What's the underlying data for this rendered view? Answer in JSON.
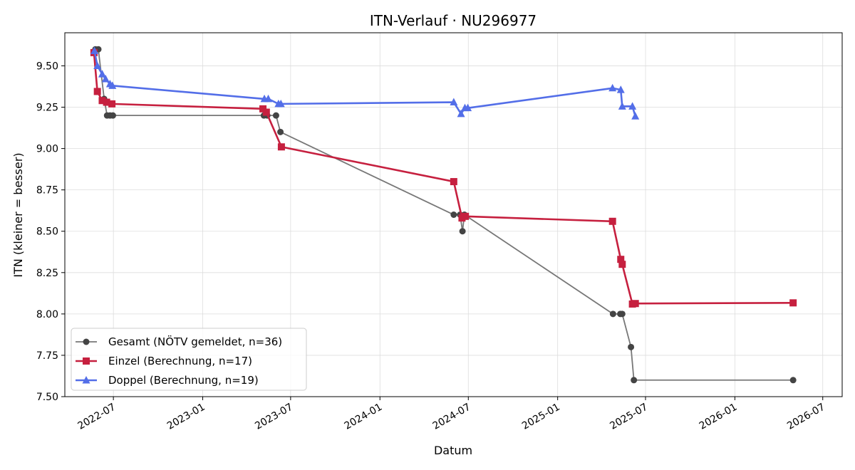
{
  "chart_data": {
    "type": "line",
    "title": "ITN-Verlauf · NU296977",
    "xlabel": "Datum",
    "ylabel": "ITN  (kleiner = besser)",
    "x_type": "date",
    "xlim": [
      "2022-03-23",
      "2026-08-10"
    ],
    "ylim": [
      7.5,
      9.7
    ],
    "x_ticks": [
      "2022-07-01",
      "2023-01-01",
      "2023-07-01",
      "2024-01-01",
      "2024-07-01",
      "2025-01-01",
      "2025-07-01",
      "2026-01-01",
      "2026-07-01"
    ],
    "x_tick_labels": [
      "2022-07",
      "2023-01",
      "2023-07",
      "2024-01",
      "2024-07",
      "2025-01",
      "2025-07",
      "2026-01",
      "2026-07"
    ],
    "y_ticks": [
      7.5,
      7.75,
      8.0,
      8.25,
      8.5,
      8.75,
      9.0,
      9.25,
      9.5
    ],
    "y_tick_labels": [
      "7.50",
      "7.75",
      "8.00",
      "8.25",
      "8.50",
      "8.75",
      "9.00",
      "9.25",
      "9.50"
    ],
    "grid": true,
    "legend_position": "lower-left",
    "series": [
      {
        "name": "Gesamt (NÖTV gemeldet, n=36)",
        "color": "#444444",
        "line_color": "#777777",
        "marker": "circle",
        "points": [
          [
            "2022-05-25",
            9.6
          ],
          [
            "2022-05-31",
            9.6
          ],
          [
            "2022-06-12",
            9.3
          ],
          [
            "2022-06-18",
            9.2
          ],
          [
            "2022-06-24",
            9.2
          ],
          [
            "2022-06-30",
            9.2
          ],
          [
            "2023-05-07",
            9.2
          ],
          [
            "2023-05-14",
            9.2
          ],
          [
            "2023-06-01",
            9.2
          ],
          [
            "2023-06-10",
            9.1
          ],
          [
            "2024-06-01",
            8.6
          ],
          [
            "2024-06-14",
            8.6
          ],
          [
            "2024-06-19",
            8.5
          ],
          [
            "2024-06-23",
            8.6
          ],
          [
            "2025-04-25",
            8.0
          ],
          [
            "2025-05-10",
            8.0
          ],
          [
            "2025-05-14",
            8.0
          ],
          [
            "2025-06-01",
            7.8
          ],
          [
            "2025-06-07",
            7.6
          ],
          [
            "2026-05-01",
            7.6
          ]
        ]
      },
      {
        "name": "Einzel (Berechnung, n=17)",
        "color": "#c6203f",
        "line_color": "#c6203f",
        "marker": "square",
        "points": [
          [
            "2022-05-22",
            9.58
          ],
          [
            "2022-05-29",
            9.345
          ],
          [
            "2022-06-08",
            9.29
          ],
          [
            "2022-06-17",
            9.28
          ],
          [
            "2022-06-28",
            9.27
          ],
          [
            "2023-05-05",
            9.24
          ],
          [
            "2023-05-12",
            9.22
          ],
          [
            "2023-06-12",
            9.01
          ],
          [
            "2024-06-01",
            8.8
          ],
          [
            "2024-06-18",
            8.58
          ],
          [
            "2024-06-25",
            8.59
          ],
          [
            "2025-04-24",
            8.56
          ],
          [
            "2025-05-11",
            8.33
          ],
          [
            "2025-05-14",
            8.3
          ],
          [
            "2025-06-04",
            8.06
          ],
          [
            "2025-06-10",
            8.063
          ],
          [
            "2026-05-01",
            8.067
          ]
        ]
      },
      {
        "name": "Doppel (Berechnung, n=19)",
        "color": "#536ee8",
        "line_color": "#536ee8",
        "marker": "triangle",
        "points": [
          [
            "2022-05-23",
            9.59
          ],
          [
            "2022-05-29",
            9.5
          ],
          [
            "2022-06-08",
            9.45
          ],
          [
            "2022-06-15",
            9.42
          ],
          [
            "2022-06-24",
            9.39
          ],
          [
            "2022-06-29",
            9.38
          ],
          [
            "2023-05-08",
            9.3
          ],
          [
            "2023-05-16",
            9.3
          ],
          [
            "2023-06-06",
            9.27
          ],
          [
            "2023-06-11",
            9.27
          ],
          [
            "2024-06-01",
            9.28
          ],
          [
            "2024-06-16",
            9.21
          ],
          [
            "2024-06-24",
            9.245
          ],
          [
            "2024-06-30",
            9.245
          ],
          [
            "2025-04-24",
            9.365
          ],
          [
            "2025-05-11",
            9.355
          ],
          [
            "2025-05-14",
            9.255
          ],
          [
            "2025-06-04",
            9.255
          ],
          [
            "2025-06-10",
            9.195
          ]
        ]
      }
    ]
  }
}
